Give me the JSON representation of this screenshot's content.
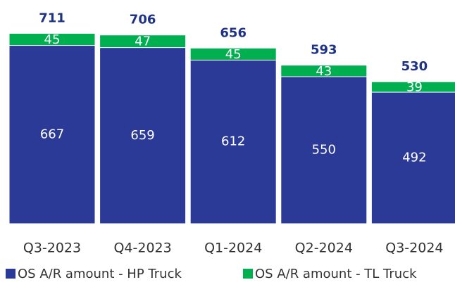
{
  "chart_data": {
    "type": "stacked_bar",
    "categories": [
      "Q3-2023",
      "Q4-2023",
      "Q1-2024",
      "Q2-2024",
      "Q3-2024"
    ],
    "series": [
      {
        "name": "OS A/R amount - HP Truck",
        "color": "#2b3a97",
        "values": [
          667,
          659,
          612,
          550,
          492
        ]
      },
      {
        "name": "OS A/R amount - TL Truck",
        "color": "#00b050",
        "values": [
          45,
          47,
          45,
          43,
          39
        ]
      }
    ],
    "totals": [
      711,
      706,
      656,
      593,
      530
    ]
  }
}
